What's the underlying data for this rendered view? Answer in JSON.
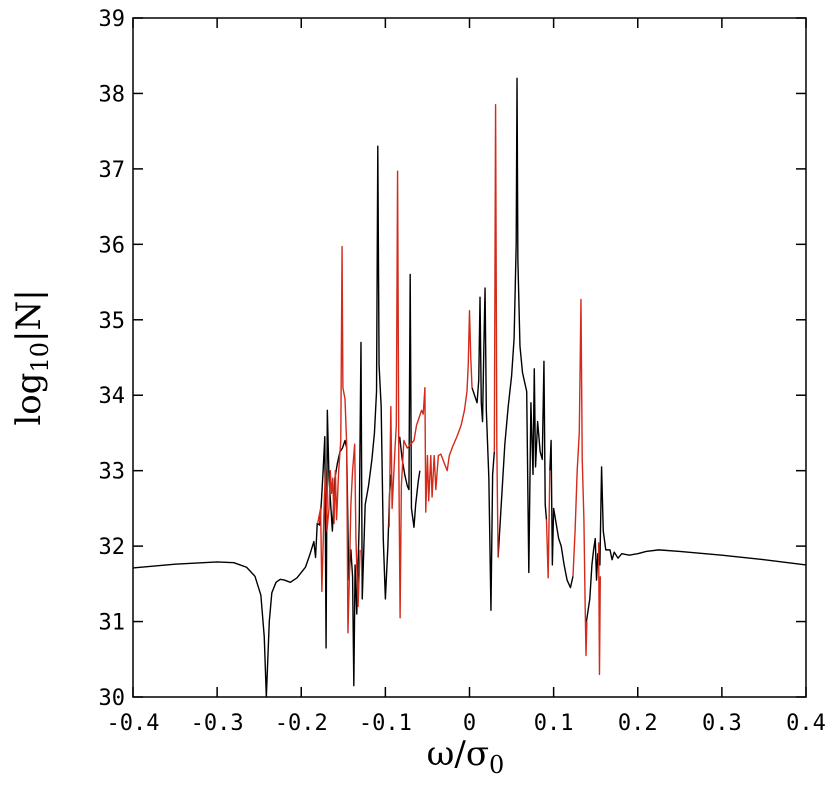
{
  "chart_data": {
    "type": "line",
    "title": "",
    "xlabel": "ω/σ",
    "xlabel_sub": "0",
    "ylabel_pre": "log",
    "ylabel_sub": "10",
    "ylabel_post": "|N|",
    "xlim": [
      -0.4,
      0.4
    ],
    "ylim": [
      30,
      39
    ],
    "x_ticks": [
      "-0.4",
      "-0.3",
      "-0.2",
      "-0.1",
      "0",
      "0.1",
      "0.2",
      "0.3",
      "0.4"
    ],
    "y_ticks": [
      "30",
      "31",
      "32",
      "33",
      "34",
      "35",
      "36",
      "37",
      "38",
      "39"
    ],
    "grid": false,
    "legend": "none",
    "colors": {
      "black_series": "#000000",
      "red_series": "#d42a1a"
    },
    "series": [
      {
        "color": "black",
        "points": [
          [
            -0.4,
            31.71
          ],
          [
            -0.35,
            31.76
          ],
          [
            -0.3,
            31.79
          ],
          [
            -0.28,
            31.78
          ],
          [
            -0.265,
            31.72
          ],
          [
            -0.255,
            31.6
          ],
          [
            -0.248,
            31.35
          ],
          [
            -0.244,
            30.8
          ],
          [
            -0.2415,
            30.0
          ],
          [
            -0.238,
            31.0
          ],
          [
            -0.235,
            31.38
          ],
          [
            -0.23,
            31.52
          ],
          [
            -0.225,
            31.56
          ],
          [
            -0.22,
            31.55
          ],
          [
            -0.213,
            31.52
          ],
          [
            -0.205,
            31.58
          ],
          [
            -0.195,
            31.72
          ],
          [
            -0.19,
            31.88
          ],
          [
            -0.185,
            32.06
          ],
          [
            -0.183,
            31.85
          ],
          [
            -0.181,
            32.3
          ],
          [
            -0.178,
            32.28
          ],
          [
            -0.176,
            32.6
          ],
          [
            -0.174,
            33.0
          ],
          [
            -0.172,
            33.45
          ],
          [
            -0.1705,
            30.65
          ],
          [
            -0.169,
            33.8
          ],
          [
            -0.167,
            32.9
          ],
          [
            -0.163,
            32.2
          ],
          [
            -0.16,
            32.9
          ],
          [
            -0.157,
            33.1
          ],
          [
            -0.154,
            33.25
          ],
          [
            -0.151,
            33.3
          ],
          [
            -0.148,
            33.4
          ],
          [
            -0.146,
            33.3
          ],
          [
            -0.1435,
            31.55
          ],
          [
            -0.141,
            31.95
          ],
          [
            -0.139,
            31.6
          ],
          [
            -0.1375,
            30.15
          ],
          [
            -0.136,
            31.75
          ],
          [
            -0.134,
            31.1
          ],
          [
            -0.131,
            32.35
          ],
          [
            -0.129,
            34.7
          ],
          [
            -0.1275,
            31.3
          ],
          [
            -0.124,
            32.55
          ],
          [
            -0.12,
            32.8
          ],
          [
            -0.116,
            33.15
          ],
          [
            -0.113,
            33.5
          ],
          [
            -0.1105,
            34.05
          ],
          [
            -0.109,
            37.3
          ],
          [
            -0.1075,
            34.4
          ],
          [
            -0.105,
            33.85
          ],
          [
            -0.1025,
            32.1
          ],
          [
            -0.1,
            31.3
          ],
          [
            -0.097,
            32.0
          ],
          [
            -0.095,
            32.7
          ],
          [
            -0.093,
            32.95
          ]
        ]
      },
      {
        "color": "black",
        "points": [
          [
            -0.083,
            33.45
          ],
          [
            -0.08,
            33.15
          ],
          [
            -0.077,
            32.95
          ],
          [
            -0.074,
            32.8
          ],
          [
            -0.072,
            32.75
          ],
          [
            -0.0705,
            35.6
          ],
          [
            -0.069,
            32.5
          ],
          [
            -0.066,
            32.25
          ],
          [
            -0.064,
            32.55
          ],
          [
            -0.061,
            32.85
          ],
          [
            -0.059,
            33.0
          ]
        ]
      },
      {
        "color": "black",
        "points": [
          [
            0.003,
            34.1
          ],
          [
            0.006,
            34.0
          ],
          [
            0.009,
            33.9
          ],
          [
            0.011,
            34.2
          ],
          [
            0.0125,
            35.3
          ],
          [
            0.014,
            33.9
          ],
          [
            0.0155,
            33.65
          ],
          [
            0.017,
            34.6
          ],
          [
            0.0185,
            35.42
          ],
          [
            0.02,
            33.8
          ],
          [
            0.023,
            32.9
          ],
          [
            0.0255,
            31.15
          ],
          [
            0.0275,
            32.95
          ],
          [
            0.0295,
            33.25
          ]
        ]
      },
      {
        "color": "black",
        "points": [
          [
            0.034,
            31.85
          ],
          [
            0.038,
            32.6
          ],
          [
            0.042,
            33.35
          ],
          [
            0.046,
            33.85
          ],
          [
            0.05,
            34.25
          ],
          [
            0.053,
            34.75
          ],
          [
            0.0555,
            36.0
          ],
          [
            0.0565,
            38.2
          ],
          [
            0.0575,
            35.8
          ],
          [
            0.06,
            34.65
          ],
          [
            0.063,
            34.3
          ],
          [
            0.068,
            34.05
          ],
          [
            0.0705,
            31.65
          ],
          [
            0.073,
            33.9
          ],
          [
            0.0755,
            32.95
          ],
          [
            0.077,
            34.35
          ],
          [
            0.0785,
            33.05
          ],
          [
            0.081,
            33.65
          ],
          [
            0.084,
            33.25
          ],
          [
            0.0865,
            33.15
          ],
          [
            0.0885,
            34.45
          ],
          [
            0.09,
            32.55
          ],
          [
            0.0915,
            32.35
          ]
        ]
      },
      {
        "color": "black",
        "points": [
          [
            0.0955,
            33.0
          ],
          [
            0.097,
            33.4
          ],
          [
            0.0985,
            31.75
          ],
          [
            0.1,
            32.5
          ],
          [
            0.103,
            32.3
          ],
          [
            0.106,
            32.1
          ],
          [
            0.109,
            32.0
          ],
          [
            0.1125,
            31.75
          ],
          [
            0.116,
            31.55
          ],
          [
            0.12,
            31.45
          ],
          [
            0.123,
            31.6
          ]
        ]
      },
      {
        "color": "black",
        "points": [
          [
            0.139,
            31.0
          ],
          [
            0.143,
            31.3
          ],
          [
            0.1455,
            31.75
          ],
          [
            0.1475,
            31.95
          ],
          [
            0.1495,
            32.1
          ],
          [
            0.151,
            31.55
          ],
          [
            0.1525,
            31.9
          ],
          [
            0.155,
            31.75
          ],
          [
            0.157,
            33.05
          ],
          [
            0.159,
            32.2
          ],
          [
            0.162,
            31.95
          ],
          [
            0.167,
            31.95
          ],
          [
            0.1695,
            31.82
          ],
          [
            0.172,
            31.92
          ],
          [
            0.1765,
            31.84
          ],
          [
            0.181,
            31.9
          ],
          [
            0.19,
            31.88
          ],
          [
            0.2,
            31.9
          ],
          [
            0.21,
            31.93
          ],
          [
            0.225,
            31.95
          ],
          [
            0.25,
            31.93
          ],
          [
            0.3,
            31.88
          ],
          [
            0.35,
            31.82
          ],
          [
            0.4,
            31.75
          ]
        ]
      },
      {
        "color": "red",
        "points": [
          [
            -0.1805,
            32.3
          ],
          [
            -0.177,
            32.5
          ],
          [
            -0.1755,
            31.4
          ],
          [
            -0.1725,
            32.65
          ],
          [
            -0.171,
            33.0
          ],
          [
            -0.1695,
            32.2
          ],
          [
            -0.167,
            32.5
          ],
          [
            -0.1655,
            33.0
          ],
          [
            -0.164,
            32.7
          ],
          [
            -0.1625,
            32.9
          ],
          [
            -0.161,
            32.3
          ],
          [
            -0.1595,
            33.0
          ],
          [
            -0.158,
            32.35
          ],
          [
            -0.1555,
            33.0
          ],
          [
            -0.153,
            33.4
          ],
          [
            -0.1515,
            35.97
          ],
          [
            -0.1505,
            34.1
          ],
          [
            -0.148,
            33.95
          ],
          [
            -0.146,
            33.35
          ],
          [
            -0.1445,
            30.85
          ],
          [
            -0.143,
            31.5
          ],
          [
            -0.141,
            32.55
          ],
          [
            -0.139,
            33.0
          ],
          [
            -0.1365,
            33.35
          ],
          [
            -0.135,
            32.1
          ],
          [
            -0.1325,
            31.2
          ],
          [
            -0.13,
            31.95
          ]
        ]
      },
      {
        "color": "red",
        "points": [
          [
            -0.0955,
            32.25
          ],
          [
            -0.0935,
            33.85
          ],
          [
            -0.092,
            32.5
          ],
          [
            -0.0885,
            33.3
          ],
          [
            -0.087,
            33.6
          ],
          [
            -0.0855,
            36.97
          ],
          [
            -0.084,
            33.1
          ],
          [
            -0.0825,
            31.05
          ],
          [
            -0.081,
            32.8
          ],
          [
            -0.078,
            33.4
          ],
          [
            -0.074,
            33.3
          ],
          [
            -0.07,
            33.35
          ],
          [
            -0.066,
            33.4
          ],
          [
            -0.063,
            33.6
          ],
          [
            -0.06,
            33.7
          ],
          [
            -0.057,
            33.8
          ],
          [
            -0.055,
            33.75
          ],
          [
            -0.053,
            34.1
          ],
          [
            -0.052,
            32.45
          ],
          [
            -0.05,
            33.2
          ],
          [
            -0.0485,
            32.6
          ],
          [
            -0.046,
            33.2
          ],
          [
            -0.0445,
            32.65
          ],
          [
            -0.042,
            33.2
          ],
          [
            -0.04,
            32.75
          ],
          [
            -0.037,
            33.2
          ],
          [
            -0.034,
            33.22
          ],
          [
            -0.03,
            33.1
          ],
          [
            -0.0265,
            33.0
          ],
          [
            -0.024,
            33.2
          ],
          [
            -0.02,
            33.32
          ],
          [
            -0.015,
            33.45
          ],
          [
            -0.01,
            33.6
          ],
          [
            -0.006,
            33.8
          ],
          [
            -0.003,
            34.05
          ],
          [
            -0.0015,
            34.4
          ],
          [
            0.0,
            35.12
          ],
          [
            0.0015,
            34.5
          ],
          [
            0.003,
            34.1
          ]
        ]
      },
      {
        "color": "red",
        "points": [
          [
            0.0295,
            33.25
          ],
          [
            0.031,
            37.85
          ],
          [
            0.0325,
            33.3
          ],
          [
            0.034,
            31.85
          ]
        ]
      },
      {
        "color": "red",
        "points": [
          [
            0.0915,
            32.35
          ],
          [
            0.0935,
            31.58
          ],
          [
            0.0955,
            33.0
          ]
        ]
      },
      {
        "color": "red",
        "points": [
          [
            0.123,
            31.6
          ],
          [
            0.1255,
            32.2
          ],
          [
            0.128,
            33.0
          ],
          [
            0.1305,
            33.5
          ],
          [
            0.1325,
            35.27
          ],
          [
            0.134,
            33.15
          ],
          [
            0.136,
            32.35
          ],
          [
            0.1375,
            31.2
          ],
          [
            0.1385,
            30.55
          ],
          [
            0.1395,
            31.0
          ]
        ]
      },
      {
        "color": "red",
        "points": [
          [
            0.1535,
            32.05
          ],
          [
            0.1545,
            30.3
          ],
          [
            0.1555,
            31.6
          ]
        ]
      }
    ]
  }
}
